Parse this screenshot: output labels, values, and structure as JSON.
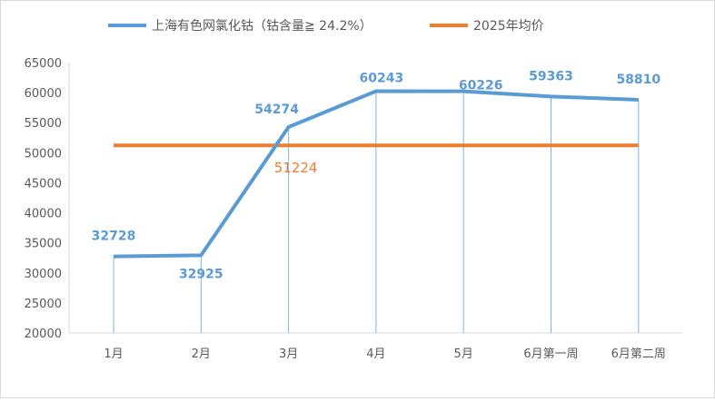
{
  "chart_data": {
    "type": "line",
    "categories": [
      "1月",
      "2月",
      "3月",
      "4月",
      "5月",
      "6月第一周",
      "6月第二周"
    ],
    "series": [
      {
        "name": "上海有色网氯化钴（钴含量≧ 24.2%）",
        "values": [
          32728,
          32925,
          54274,
          60243,
          60226,
          59363,
          58810
        ],
        "color": "#5b9bd5",
        "labels": [
          "32728",
          "32925",
          "54274",
          "60243",
          "60226",
          "59363",
          "58810"
        ]
      },
      {
        "name": "2025年均价",
        "values": [
          51224,
          51224,
          51224,
          51224,
          51224,
          51224,
          51224
        ],
        "color": "#ed7d31",
        "label": "51224"
      }
    ],
    "ylim": [
      20000,
      65000
    ],
    "yticks": [
      "20000",
      "25000",
      "30000",
      "35000",
      "40000",
      "45000",
      "50000",
      "55000",
      "60000",
      "65000"
    ],
    "grid": false,
    "drop_lines": true,
    "legend": "top"
  }
}
